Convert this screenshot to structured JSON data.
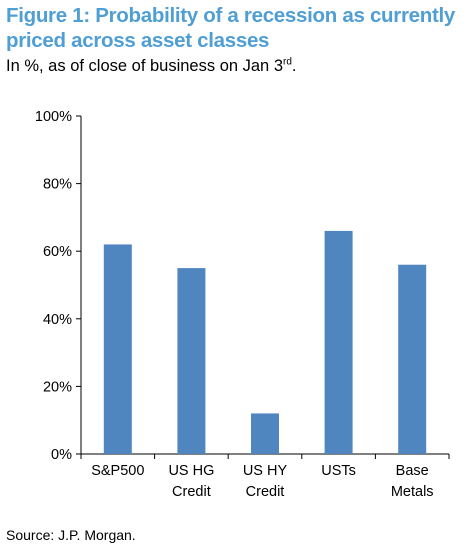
{
  "figure": {
    "title": "Figure 1: Probability of a recession as currently priced across asset classes",
    "subtitle_main": "In %, as of close of business on Jan 3",
    "subtitle_sup": "rd",
    "subtitle_end": ".",
    "source": "Source: J.P. Morgan."
  },
  "colors": {
    "title": "#4f9ed4",
    "bar": "#4f86c0",
    "axis": "#000000",
    "text": "#000000"
  },
  "chart_data": {
    "type": "bar",
    "categories": [
      "S&P500",
      "US HG Credit",
      "US HY Credit",
      "USTs",
      "Base Metals"
    ],
    "category_lines": [
      [
        "S&P500"
      ],
      [
        "US HG",
        "Credit"
      ],
      [
        "US HY",
        "Credit"
      ],
      [
        "USTs"
      ],
      [
        "Base",
        "Metals"
      ]
    ],
    "values": [
      62,
      55,
      12,
      66,
      56
    ],
    "ylim": [
      0,
      100
    ],
    "yticks": [
      0,
      20,
      40,
      60,
      80,
      100
    ],
    "ytick_labels": [
      "0%",
      "20%",
      "40%",
      "60%",
      "80%",
      "100%"
    ],
    "grid": false,
    "legend": "none"
  }
}
